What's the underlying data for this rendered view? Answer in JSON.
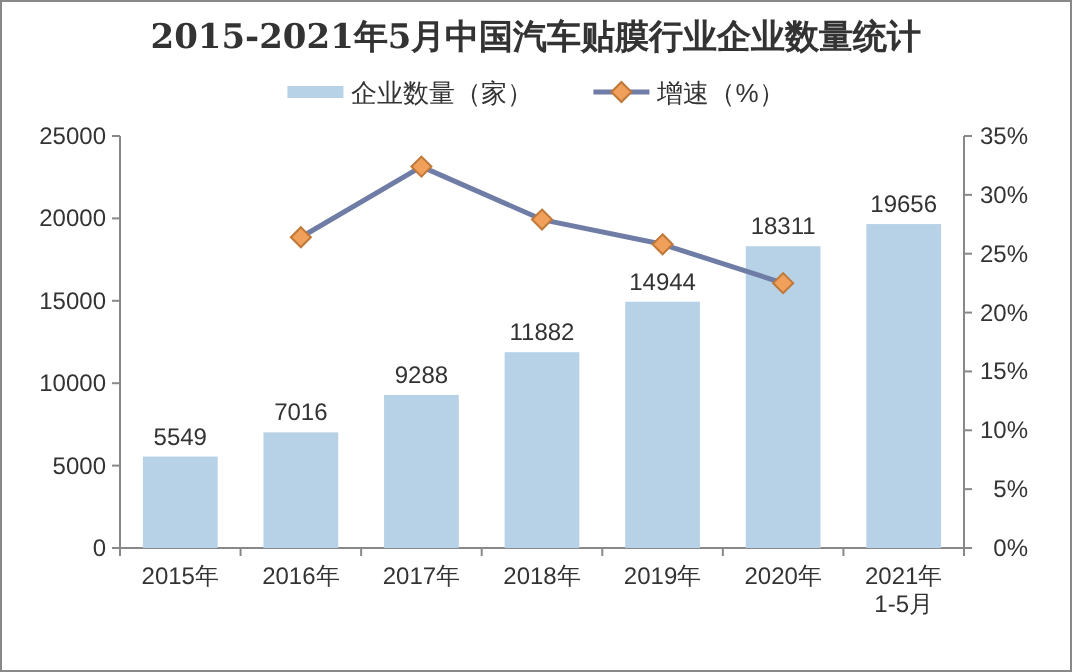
{
  "chart_data": {
    "type": "bar",
    "title": "2015-2021年5月中国汽车贴膜行业企业数量统计",
    "categories": [
      "2015年",
      "2016年",
      "2017年",
      "2018年",
      "2019年",
      "2020年",
      "2021年1-5月"
    ],
    "series": [
      {
        "name": "企业数量（家）",
        "color": "#b7d2e6",
        "values": [
          5549,
          7016,
          9288,
          11882,
          14944,
          18311,
          19656
        ],
        "value_labels": [
          "5549",
          "7016",
          "9288",
          "11882",
          "14944",
          "18311",
          "19656"
        ]
      },
      {
        "name": "增速（%）",
        "type": "line",
        "axis": "y2",
        "color": "#6f7ca6",
        "marker": "diamond",
        "values": [
          null,
          26.4,
          32.4,
          27.9,
          25.8,
          22.5,
          null
        ]
      }
    ],
    "ylim": [
      0,
      25000
    ],
    "yticks": [
      0,
      5000,
      10000,
      15000,
      20000,
      25000
    ],
    "y2lim": [
      0,
      35
    ],
    "y2ticks": [
      {
        "value": 0,
        "label": "0%"
      },
      {
        "value": 5,
        "label": "5%"
      },
      {
        "value": 10,
        "label": "10%"
      },
      {
        "value": 15,
        "label": "15%"
      },
      {
        "value": 20,
        "label": "20%"
      },
      {
        "value": 25,
        "label": "25%"
      },
      {
        "value": 30,
        "label": "30%"
      },
      {
        "value": 35,
        "label": "35%"
      }
    ],
    "legend": "top"
  }
}
